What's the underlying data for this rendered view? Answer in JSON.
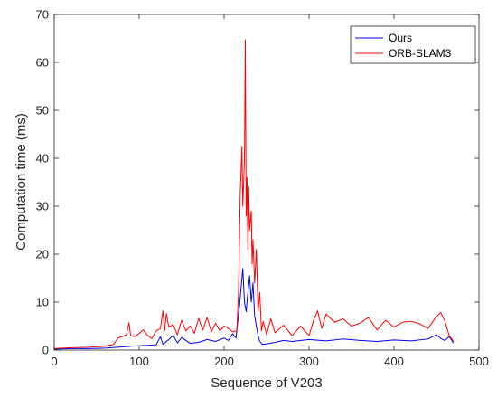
{
  "chart_data": {
    "type": "line",
    "title": "",
    "xlabel": "Sequence of V203",
    "ylabel": "Computation time (ms)",
    "xlim": [
      0,
      500
    ],
    "ylim": [
      0,
      70
    ],
    "xticks": [
      0,
      100,
      200,
      300,
      400,
      500
    ],
    "yticks": [
      0,
      10,
      20,
      30,
      40,
      50,
      60,
      70
    ],
    "grid": false,
    "legend_position": "top-right",
    "series": [
      {
        "name": "Ours",
        "color": "#0000ff",
        "x": [
          0,
          20,
          40,
          60,
          75,
          90,
          100,
          110,
          120,
          125,
          128,
          130,
          135,
          140,
          145,
          150,
          160,
          170,
          180,
          190,
          200,
          205,
          210,
          214,
          218,
          220,
          222,
          224,
          226,
          228,
          230,
          232,
          234,
          236,
          238,
          240,
          242,
          245,
          250,
          260,
          270,
          280,
          300,
          320,
          340,
          360,
          380,
          400,
          420,
          440,
          450,
          455,
          460,
          465,
          470
        ],
        "values": [
          0.2,
          0.3,
          0.3,
          0.4,
          0.6,
          0.8,
          0.9,
          1.0,
          1.1,
          2.8,
          1.2,
          1.5,
          2.2,
          3.1,
          1.5,
          2.6,
          1.4,
          1.6,
          2.2,
          1.8,
          2.5,
          2.0,
          3.4,
          2.5,
          9.0,
          13.0,
          17.0,
          10.0,
          8.0,
          12.0,
          15.5,
          10.0,
          14.0,
          7.0,
          5.0,
          3.0,
          1.8,
          1.2,
          1.3,
          1.6,
          2.0,
          1.8,
          2.2,
          1.9,
          2.3,
          2.0,
          1.8,
          2.1,
          1.9,
          2.3,
          3.2,
          2.4,
          2.0,
          2.8,
          1.5
        ]
      },
      {
        "name": "ORB-SLAM3",
        "color": "#ff0000",
        "x": [
          0,
          20,
          40,
          60,
          70,
          75,
          80,
          85,
          88,
          90,
          95,
          100,
          105,
          110,
          115,
          120,
          125,
          128,
          130,
          132,
          135,
          140,
          145,
          150,
          155,
          160,
          165,
          170,
          175,
          180,
          185,
          190,
          195,
          200,
          205,
          210,
          215,
          217,
          219,
          221,
          222,
          224,
          225,
          226,
          227,
          228,
          229,
          230,
          232,
          233,
          234,
          236,
          238,
          240,
          242,
          244,
          246,
          250,
          255,
          260,
          270,
          280,
          290,
          300,
          305,
          310,
          315,
          320,
          330,
          340,
          350,
          360,
          370,
          380,
          390,
          400,
          410,
          420,
          430,
          440,
          450,
          455,
          460,
          465,
          470
        ],
        "values": [
          0.3,
          0.5,
          0.6,
          0.8,
          1.2,
          2.5,
          2.8,
          3.2,
          5.7,
          3.0,
          2.8,
          3.5,
          4.2,
          3.0,
          2.4,
          4.0,
          4.5,
          8.2,
          4.0,
          7.6,
          4.8,
          5.3,
          3.2,
          6.2,
          4.0,
          5.0,
          3.5,
          6.6,
          4.2,
          6.8,
          3.8,
          5.6,
          4.0,
          5.0,
          4.5,
          3.8,
          4.0,
          12.0,
          32.5,
          42.5,
          30.0,
          40.0,
          64.7,
          28.0,
          36.0,
          21.0,
          34.0,
          25.0,
          29.0,
          18.0,
          23.0,
          14.0,
          21.0,
          8.0,
          12.0,
          4.0,
          6.0,
          3.2,
          6.5,
          3.6,
          5.2,
          3.0,
          5.0,
          3.0,
          6.0,
          8.2,
          4.5,
          7.5,
          5.8,
          6.5,
          5.0,
          5.6,
          6.8,
          4.2,
          6.2,
          4.8,
          5.8,
          6.0,
          5.5,
          4.5,
          7.0,
          7.8,
          6.0,
          3.0,
          1.8
        ]
      }
    ]
  }
}
